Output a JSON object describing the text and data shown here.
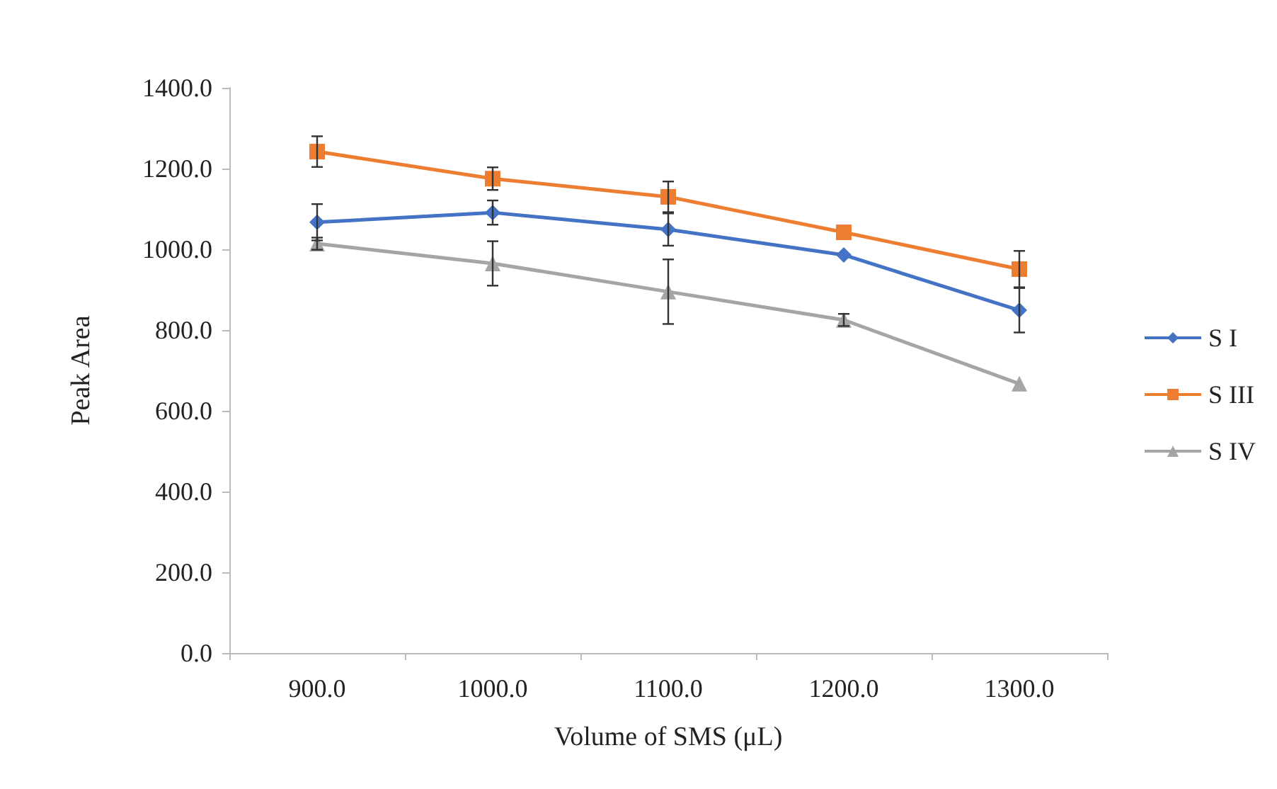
{
  "chart_data": {
    "type": "line",
    "xlabel": "Volume of SMS (μL)",
    "ylabel": "Peak Area",
    "categories": [
      "900.0",
      "1000.0",
      "1100.0",
      "1200.0",
      "1300.0"
    ],
    "ylim": [
      0,
      1400
    ],
    "yticks": [
      {
        "value": 0,
        "label": "0.0"
      },
      {
        "value": 200,
        "label": "200.0"
      },
      {
        "value": 400,
        "label": "400.0"
      },
      {
        "value": 600,
        "label": "600.0"
      },
      {
        "value": 800,
        "label": "800.0"
      },
      {
        "value": 1000,
        "label": "1000.0"
      },
      {
        "value": 1200,
        "label": "1200.0"
      },
      {
        "value": 1400,
        "label": "1400.0"
      }
    ],
    "grid": false,
    "legend": "right",
    "series": [
      {
        "name": "S I",
        "color": "#4472c4",
        "marker": "diamond",
        "values": [
          1067,
          1091,
          1049,
          986,
          849
        ],
        "errors": [
          45,
          30,
          40,
          null,
          55
        ]
      },
      {
        "name": "S III",
        "color": "#ed7d31",
        "marker": "square",
        "values": [
          1242,
          1175,
          1130,
          1042,
          951
        ],
        "errors": [
          38,
          28,
          38,
          null,
          45
        ]
      },
      {
        "name": "S IV",
        "color": "#a5a5a5",
        "marker": "triangle",
        "values": [
          1014,
          965,
          895,
          825,
          667
        ],
        "errors": [
          15,
          55,
          80,
          15,
          null
        ]
      }
    ]
  }
}
